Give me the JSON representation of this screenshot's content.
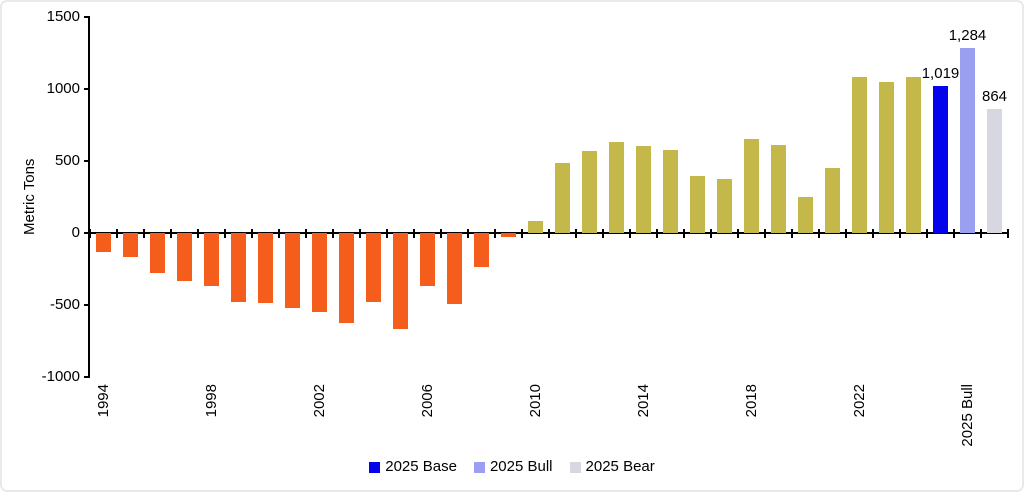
{
  "chart_data": {
    "type": "bar",
    "title": "",
    "ylabel": "Metric Tons",
    "ylim": [
      -1000,
      1500
    ],
    "ytick_interval": 500,
    "yticks": [
      1500,
      1000,
      500,
      0,
      -500,
      -1000
    ],
    "ytick_labels": [
      "1500",
      "1000",
      "500",
      "0",
      "-500",
      "-1000"
    ],
    "grid": false,
    "legend_position": "bottom-center",
    "categories": [
      "1994",
      "1995",
      "1996",
      "1997",
      "1998",
      "1999",
      "2000",
      "2001",
      "2002",
      "2003",
      "2004",
      "2005",
      "2006",
      "2007",
      "2008",
      "2009",
      "2010",
      "2011",
      "2012",
      "2013",
      "2014",
      "2015",
      "2016",
      "2017",
      "2018",
      "2019",
      "2020",
      "2021",
      "2022",
      "2023",
      "2024",
      "2025 Base",
      "2025 Bull",
      "2025 Bear"
    ],
    "values": [
      -130,
      -170,
      -280,
      -330,
      -365,
      -480,
      -485,
      -520,
      -550,
      -625,
      -480,
      -665,
      -365,
      -490,
      -235,
      -30,
      80,
      485,
      570,
      630,
      605,
      575,
      395,
      375,
      655,
      610,
      250,
      450,
      1080,
      1050,
      1085,
      1019,
      1284,
      864
    ],
    "bar_colors": {
      "negative": "#F45D1B",
      "positive": "#C4B84A",
      "2025 Base": "#0404EC",
      "2025 Bull": "#9B9FF0",
      "2025 Bear": "#D7D7E2"
    },
    "xtick_labels": [
      {
        "slot": 0,
        "label": "1994"
      },
      {
        "slot": 4,
        "label": "1998"
      },
      {
        "slot": 8,
        "label": "2002"
      },
      {
        "slot": 12,
        "label": "2006"
      },
      {
        "slot": 16,
        "label": "2010"
      },
      {
        "slot": 20,
        "label": "2014"
      },
      {
        "slot": 24,
        "label": "2018"
      },
      {
        "slot": 28,
        "label": "2022"
      },
      {
        "slot": 32,
        "label": "2025 Bull"
      }
    ],
    "data_labels": [
      {
        "slot": 31,
        "text": "1,019"
      },
      {
        "slot": 32,
        "text": "1,284"
      },
      {
        "slot": 33,
        "text": "864"
      }
    ],
    "legend": [
      {
        "label": "2025 Base",
        "color": "#0404EC"
      },
      {
        "label": "2025 Bull",
        "color": "#9B9FF0"
      },
      {
        "label": "2025 Bear",
        "color": "#D7D7E2"
      }
    ],
    "axis_color": "#000000"
  }
}
